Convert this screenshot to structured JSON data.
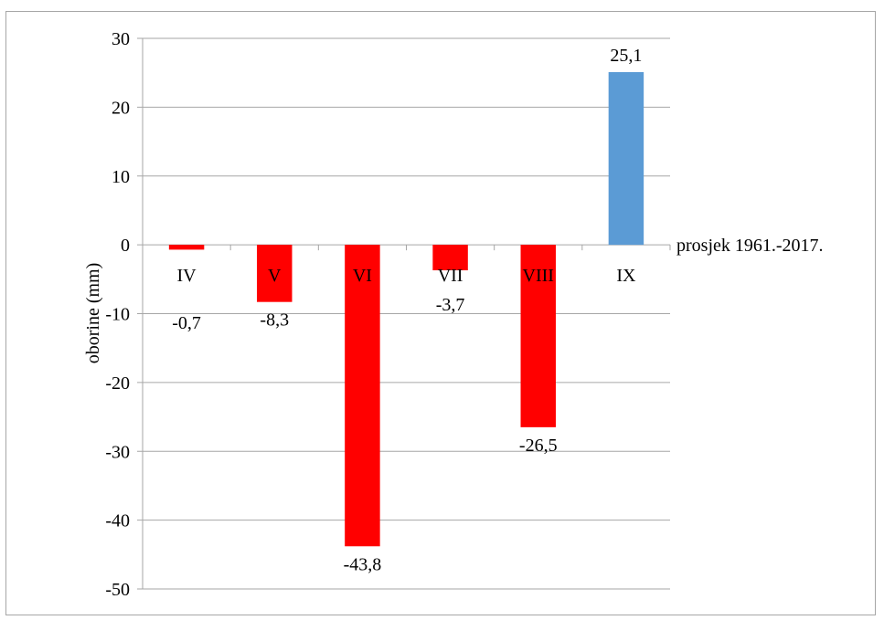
{
  "chart_data": {
    "type": "bar",
    "categories": [
      "IV",
      "V",
      "VI",
      "VII",
      "VIII",
      "IX"
    ],
    "values": [
      -0.7,
      -8.3,
      -43.8,
      -3.7,
      -26.5,
      25.1
    ],
    "value_labels": [
      "-0,7",
      "-8,3",
      "-43,8",
      "-3,7",
      "-26,5",
      "25,1"
    ],
    "ylabel": "oborine (mm)",
    "baseline_label": "prosjek 1961.-2017.",
    "ylim": [
      -50,
      30
    ],
    "yticks": [
      30,
      20,
      10,
      0,
      -10,
      -20,
      -30,
      -40,
      -50
    ],
    "grid": true,
    "colors": {
      "negative": "#ff0000",
      "positive": "#5b9bd5",
      "grid": "#a6a6a6"
    }
  }
}
